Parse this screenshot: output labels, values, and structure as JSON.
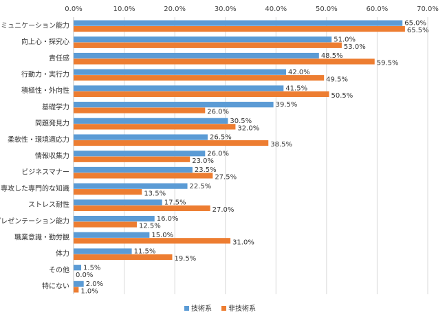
{
  "chart_data": {
    "type": "bar",
    "orientation": "horizontal",
    "title": "",
    "xlabel": "",
    "ylabel": "",
    "xlim": [
      0,
      70
    ],
    "x_ticks": [
      "0.0%",
      "10.0%",
      "20.0%",
      "30.0%",
      "40.0%",
      "50.0%",
      "60.0%",
      "70.0%"
    ],
    "tick_values": [
      0,
      10,
      20,
      30,
      40,
      50,
      60,
      70
    ],
    "x_axis_position": "top",
    "grid": true,
    "legend_position": "bottom",
    "categories": [
      "コミュニケーション能力",
      "向上心・探究心",
      "責任感",
      "行動力・実行力",
      "積極性・外向性",
      "基礎学力",
      "問題発見力",
      "柔軟性・環境適応力",
      "情報収集力",
      "ビジネスマナー",
      "専攻した専門的な知識",
      "ストレス耐性",
      "プレゼンテーション能力",
      "職業意識・勤労観",
      "体力",
      "その他",
      "特にない"
    ],
    "series": [
      {
        "name": "技術系",
        "color": "#5B9BD5",
        "values": [
          65.0,
          51.0,
          48.5,
          42.0,
          41.5,
          39.5,
          30.5,
          26.5,
          26.0,
          23.5,
          22.5,
          17.5,
          16.0,
          15.0,
          11.5,
          1.5,
          2.0
        ],
        "labels": [
          "65.0%",
          "51.0%",
          "48.5%",
          "42.0%",
          "41.5%",
          "39.5%",
          "30.5%",
          "26.5%",
          "26.0%",
          "23.5%",
          "22.5%",
          "17.5%",
          "16.0%",
          "15.0%",
          "11.5%",
          "1.5%",
          "2.0%"
        ]
      },
      {
        "name": "非技術系",
        "color": "#ED7D31",
        "values": [
          65.5,
          53.0,
          59.5,
          49.5,
          50.5,
          26.0,
          32.0,
          38.5,
          23.0,
          27.5,
          13.5,
          27.0,
          12.5,
          31.0,
          19.5,
          0.0,
          1.0
        ],
        "labels": [
          "65.5%",
          "53.0%",
          "59.5%",
          "49.5%",
          "50.5%",
          "26.0%",
          "32.0%",
          "38.5%",
          "23.0%",
          "27.5%",
          "13.5%",
          "27.0%",
          "12.5%",
          "31.0%",
          "19.5%",
          "0.0%",
          "1.0%"
        ]
      }
    ]
  }
}
